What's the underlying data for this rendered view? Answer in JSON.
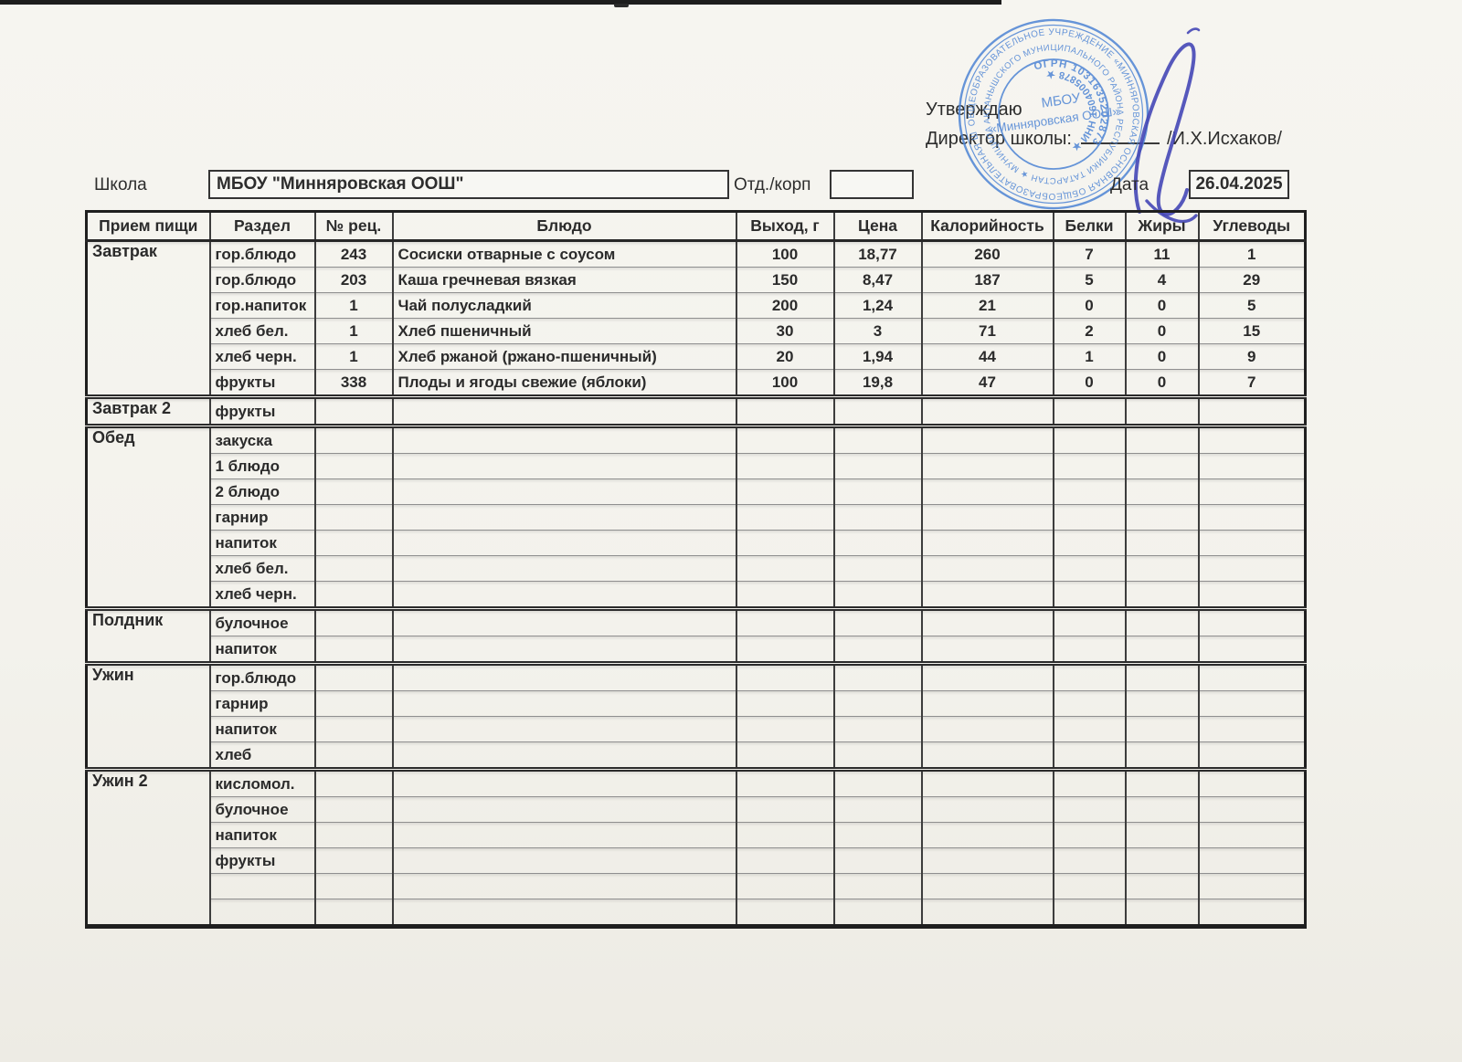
{
  "approval": {
    "approve_label": "Утверждаю",
    "director_label": "Директор школы:",
    "director_name": "/И.Х.Исхаков/"
  },
  "stamp": {
    "ring1": "ОБЩЕОБРАЗОВАТЕЛЬНОЕ УЧРЕЖДЕНИЕ «МИННЯРОВСКАЯ ОСНОВНАЯ ОБЩЕОБРАЗОВАТЕЛЬНАЯ ШКОЛА»",
    "ring2": "АКТАНЫШСКОГО МУНИЦИПАЛЬНОГО РАЙОНА РЕСПУБЛИКИ ТАТАРСТАН ★ МУНИЦИПАЛЬНОЕ БЮДЖЕТНОЕ",
    "ogrn": "ОГРН 1031635202873",
    "inn": "★ ИНН 1604005878 ★",
    "center_line1": "МБОУ",
    "center_line2": "«Минняровская ООШ»",
    "stamp_color": "#4d84d4",
    "signature_color": "#4547b6"
  },
  "school_row": {
    "school_label": "Школа",
    "school_name": "МБОУ \"Минняровская ООШ\"",
    "dept_label": "Отд./корп",
    "dept_value": "",
    "date_label": "Дата",
    "date_value": "26.04.2025"
  },
  "table": {
    "columns": [
      "Прием пищи",
      "Раздел",
      "№ рец.",
      "Блюдо",
      "Выход, г",
      "Цена",
      "Калорийность",
      "Белки",
      "Жиры",
      "Углеводы"
    ],
    "sections": [
      {
        "meal": "Завтрак",
        "rows": [
          {
            "razdel": "гор.блюдо",
            "rec": "243",
            "dish": "Сосиски отварные с соусом",
            "out": "100",
            "price": "18,77",
            "kcal": "260",
            "protein": "7",
            "fat": "11",
            "carbs": "1"
          },
          {
            "razdel": "гор.блюдо",
            "rec": "203",
            "dish": "Каша гречневая вязкая",
            "out": "150",
            "price": "8,47",
            "kcal": "187",
            "protein": "5",
            "fat": "4",
            "carbs": "29"
          },
          {
            "razdel": "гор.напиток",
            "rec": "1",
            "dish": "Чай полусладкий",
            "out": "200",
            "price": "1,24",
            "kcal": "21",
            "protein": "0",
            "fat": "0",
            "carbs": "5"
          },
          {
            "razdel": "хлеб бел.",
            "rec": "1",
            "dish": "Хлеб пшеничный",
            "out": "30",
            "price": "3",
            "kcal": "71",
            "protein": "2",
            "fat": "0",
            "carbs": "15"
          },
          {
            "razdel": "хлеб черн.",
            "rec": "1",
            "dish": "Хлеб ржаной (ржано-пшеничный)",
            "out": "20",
            "price": "1,94",
            "kcal": "44",
            "protein": "1",
            "fat": "0",
            "carbs": "9"
          },
          {
            "razdel": "фрукты",
            "rec": "338",
            "dish": "Плоды и ягоды свежие (яблоки)",
            "out": "100",
            "price": "19,8",
            "kcal": "47",
            "protein": "0",
            "fat": "0",
            "carbs": "7"
          }
        ]
      },
      {
        "meal": "Завтрак 2",
        "rows": [
          {
            "razdel": "фрукты",
            "rec": "",
            "dish": "",
            "out": "",
            "price": "",
            "kcal": "",
            "protein": "",
            "fat": "",
            "carbs": ""
          }
        ]
      },
      {
        "meal": "Обед",
        "rows": [
          {
            "razdel": "закуска",
            "rec": "",
            "dish": "",
            "out": "",
            "price": "",
            "kcal": "",
            "protein": "",
            "fat": "",
            "carbs": ""
          },
          {
            "razdel": "1 блюдо",
            "rec": "",
            "dish": "",
            "out": "",
            "price": "",
            "kcal": "",
            "protein": "",
            "fat": "",
            "carbs": ""
          },
          {
            "razdel": "2 блюдо",
            "rec": "",
            "dish": "",
            "out": "",
            "price": "",
            "kcal": "",
            "protein": "",
            "fat": "",
            "carbs": ""
          },
          {
            "razdel": "гарнир",
            "rec": "",
            "dish": "",
            "out": "",
            "price": "",
            "kcal": "",
            "protein": "",
            "fat": "",
            "carbs": ""
          },
          {
            "razdel": "напиток",
            "rec": "",
            "dish": "",
            "out": "",
            "price": "",
            "kcal": "",
            "protein": "",
            "fat": "",
            "carbs": ""
          },
          {
            "razdel": "хлеб бел.",
            "rec": "",
            "dish": "",
            "out": "",
            "price": "",
            "kcal": "",
            "protein": "",
            "fat": "",
            "carbs": ""
          },
          {
            "razdel": "хлеб черн.",
            "rec": "",
            "dish": "",
            "out": "",
            "price": "",
            "kcal": "",
            "protein": "",
            "fat": "",
            "carbs": ""
          }
        ]
      },
      {
        "meal": "Полдник",
        "rows": [
          {
            "razdel": "булочное",
            "rec": "",
            "dish": "",
            "out": "",
            "price": "",
            "kcal": "",
            "protein": "",
            "fat": "",
            "carbs": ""
          },
          {
            "razdel": "напиток",
            "rec": "",
            "dish": "",
            "out": "",
            "price": "",
            "kcal": "",
            "protein": "",
            "fat": "",
            "carbs": ""
          }
        ]
      },
      {
        "meal": "Ужин",
        "rows": [
          {
            "razdel": "гор.блюдо",
            "rec": "",
            "dish": "",
            "out": "",
            "price": "",
            "kcal": "",
            "protein": "",
            "fat": "",
            "carbs": ""
          },
          {
            "razdel": "гарнир",
            "rec": "",
            "dish": "",
            "out": "",
            "price": "",
            "kcal": "",
            "protein": "",
            "fat": "",
            "carbs": ""
          },
          {
            "razdel": "напиток",
            "rec": "",
            "dish": "",
            "out": "",
            "price": "",
            "kcal": "",
            "protein": "",
            "fat": "",
            "carbs": ""
          },
          {
            "razdel": "хлеб",
            "rec": "",
            "dish": "",
            "out": "",
            "price": "",
            "kcal": "",
            "protein": "",
            "fat": "",
            "carbs": ""
          }
        ]
      },
      {
        "meal": "Ужин 2",
        "rows": [
          {
            "razdel": "кисломол.",
            "rec": "",
            "dish": "",
            "out": "",
            "price": "",
            "kcal": "",
            "protein": "",
            "fat": "",
            "carbs": ""
          },
          {
            "razdel": "булочное",
            "rec": "",
            "dish": "",
            "out": "",
            "price": "",
            "kcal": "",
            "protein": "",
            "fat": "",
            "carbs": ""
          },
          {
            "razdel": "напиток",
            "rec": "",
            "dish": "",
            "out": "",
            "price": "",
            "kcal": "",
            "protein": "",
            "fat": "",
            "carbs": ""
          },
          {
            "razdel": "фрукты",
            "rec": "",
            "dish": "",
            "out": "",
            "price": "",
            "kcal": "",
            "protein": "",
            "fat": "",
            "carbs": ""
          },
          {
            "razdel": "",
            "rec": "",
            "dish": "",
            "out": "",
            "price": "",
            "kcal": "",
            "protein": "",
            "fat": "",
            "carbs": ""
          },
          {
            "razdel": "",
            "rec": "",
            "dish": "",
            "out": "",
            "price": "",
            "kcal": "",
            "protein": "",
            "fat": "",
            "carbs": ""
          }
        ]
      }
    ]
  }
}
